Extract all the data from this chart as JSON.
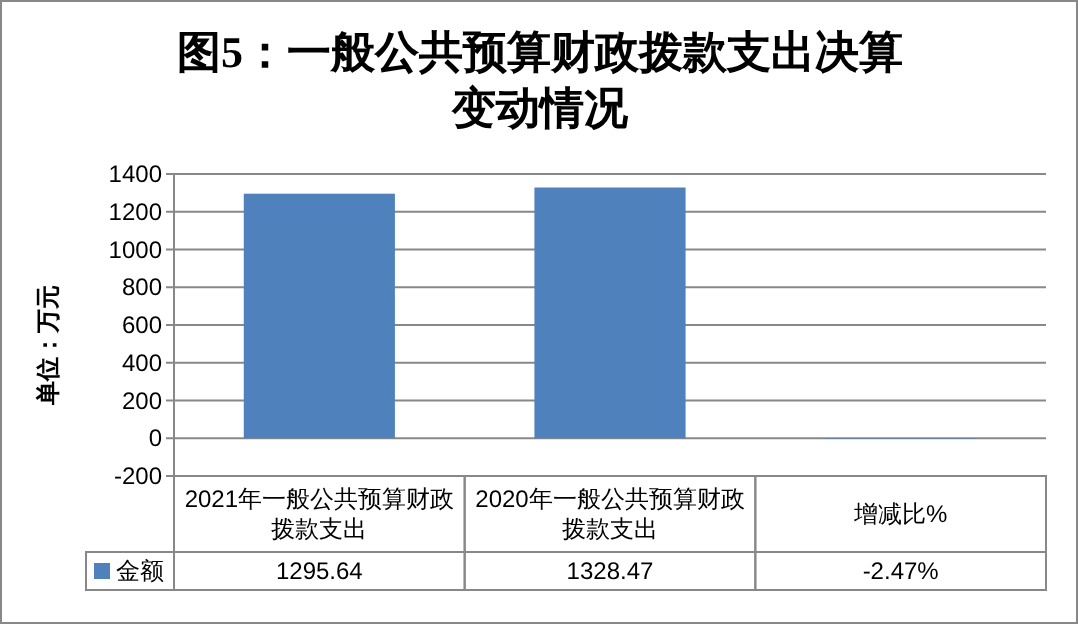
{
  "chart_data": {
    "type": "bar",
    "title": "图5：一般公共预算财政拨款支出决算变动情况",
    "ylabel": "单位：万元",
    "categories": [
      "2021年一般公共预算财政拨款支出",
      "2020年一般公共预算财政拨款支出",
      "增减比%"
    ],
    "series": [
      {
        "name": "金额",
        "color": "#4f81bd",
        "values": [
          1295.64,
          1328.47,
          -2.47
        ],
        "value_labels": [
          "1295.64",
          "1328.47",
          "-2.47%"
        ]
      }
    ],
    "ylim": [
      -200,
      1400
    ],
    "yticks": [
      -200,
      0,
      200,
      400,
      600,
      800,
      1000,
      1200,
      1400
    ],
    "grid": "y",
    "legend": "bottom left"
  }
}
